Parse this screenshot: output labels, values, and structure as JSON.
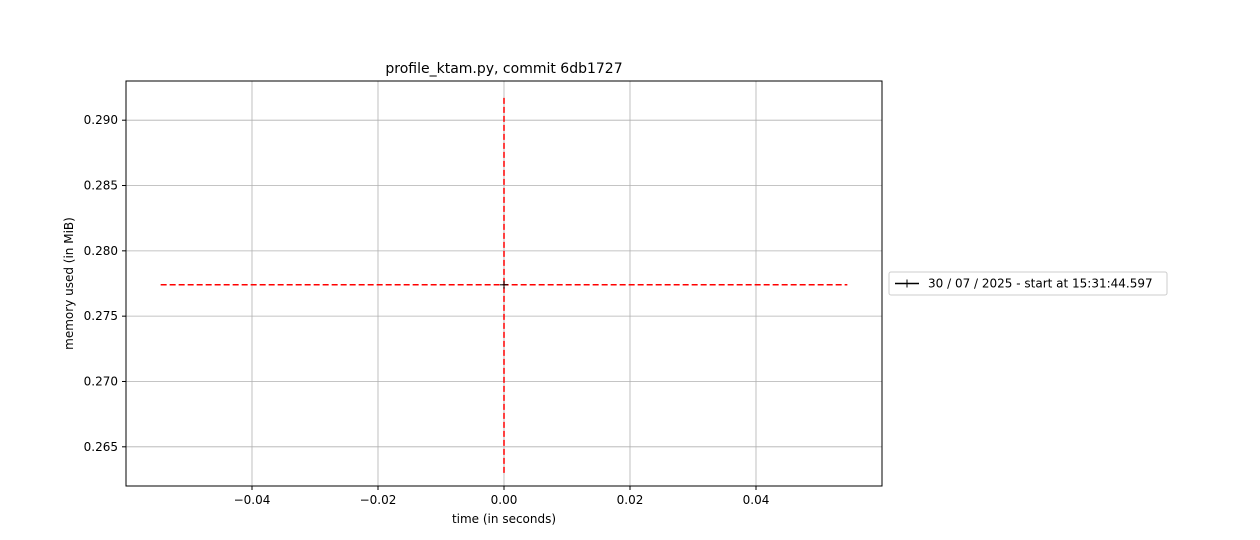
{
  "chart_data": {
    "type": "scatter",
    "title": "profile_ktam.py, commit 6db1727",
    "xlabel": "time (in seconds)",
    "ylabel": "memory used (in MiB)",
    "xlim": [
      -0.06,
      0.06
    ],
    "ylim": [
      0.262,
      0.293
    ],
    "xticks": [
      -0.04,
      -0.02,
      0.0,
      0.02,
      0.04
    ],
    "xtick_labels": [
      "−0.04",
      "−0.02",
      "0.00",
      "0.02",
      "0.04"
    ],
    "yticks": [
      0.265,
      0.27,
      0.275,
      0.28,
      0.285,
      0.29
    ],
    "ytick_labels": [
      "0.265",
      "0.270",
      "0.275",
      "0.280",
      "0.285",
      "0.290"
    ],
    "grid": true,
    "series": [
      {
        "name": "30 / 07 / 2025 - start at 15:31:44.597",
        "color": "#000000",
        "marker": "plus",
        "points": [
          {
            "x": 0.0,
            "y": 0.2774
          }
        ]
      }
    ],
    "reference_lines": [
      {
        "orientation": "horizontal",
        "y": 0.2774,
        "x_range": [
          -0.0545,
          0.0545
        ],
        "color": "#ff0000",
        "style": "dashed"
      },
      {
        "orientation": "vertical",
        "x": 0.0,
        "y_range": [
          0.263,
          0.2918
        ],
        "color": "#ff0000",
        "style": "dashed"
      }
    ],
    "legend_placement": "right outside"
  }
}
